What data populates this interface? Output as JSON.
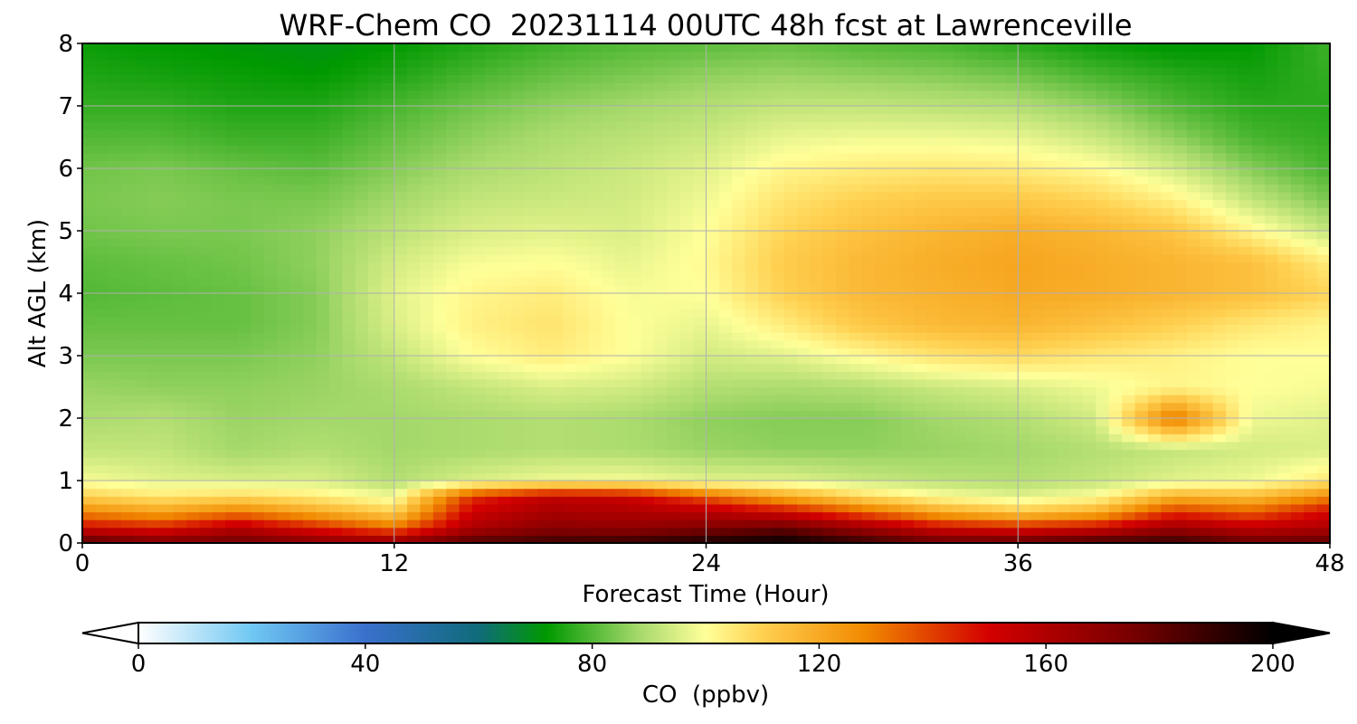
{
  "chart_data": {
    "type": "heatmap",
    "title": "WRF-Chem CO  20231114 00UTC 48h fcst at Lawrenceville",
    "xlabel": "Forecast Time (Hour)",
    "ylabel": "Alt AGL (km)",
    "xlim": [
      0,
      48
    ],
    "ylim": [
      0,
      8
    ],
    "x_ticks": [
      0,
      12,
      24,
      36,
      48
    ],
    "y_ticks": [
      0,
      1,
      2,
      3,
      4,
      5,
      6,
      7,
      8
    ],
    "grid": true,
    "x": [
      0,
      3,
      6,
      9,
      12,
      15,
      18,
      21,
      24,
      27,
      30,
      33,
      36,
      39,
      42,
      45,
      48
    ],
    "y": [
      0,
      0.25,
      0.5,
      0.75,
      1,
      1.5,
      2,
      2.5,
      3,
      3.5,
      4,
      4.5,
      5,
      5.5,
      6,
      6.5,
      7,
      7.5,
      8
    ],
    "z": [
      [
        185,
        175,
        178,
        172,
        170,
        185,
        188,
        190,
        196,
        200,
        190,
        180,
        182,
        188,
        190,
        180,
        182
      ],
      [
        150,
        145,
        158,
        145,
        132,
        160,
        170,
        168,
        172,
        178,
        165,
        150,
        145,
        150,
        165,
        155,
        160
      ],
      [
        128,
        122,
        130,
        120,
        110,
        152,
        162,
        160,
        158,
        150,
        135,
        120,
        112,
        118,
        142,
        135,
        150
      ],
      [
        110,
        105,
        108,
        104,
        98,
        142,
        155,
        152,
        135,
        120,
        108,
        100,
        96,
        100,
        118,
        115,
        128
      ],
      [
        99,
        96,
        95,
        95,
        90,
        95,
        98,
        99,
        96,
        96,
        93,
        91,
        90,
        92,
        96,
        98,
        105
      ],
      [
        92,
        92,
        88,
        90,
        88,
        89,
        90,
        89,
        87,
        86,
        86,
        87,
        88,
        90,
        92,
        94,
        95
      ],
      [
        89,
        90,
        87,
        88,
        88,
        89,
        90,
        89,
        86,
        85,
        85,
        88,
        90,
        94,
        132,
        98,
        96
      ],
      [
        87,
        86,
        86,
        87,
        89,
        92,
        95,
        94,
        90,
        89,
        90,
        93,
        95,
        98,
        102,
        100,
        99
      ],
      [
        84,
        84,
        84,
        86,
        92,
        100,
        104,
        100,
        94,
        96,
        101,
        106,
        108,
        105,
        103,
        100,
        100
      ],
      [
        82,
        82,
        82,
        85,
        95,
        103,
        106,
        100,
        97,
        104,
        112,
        116,
        117,
        114,
        110,
        105,
        102
      ],
      [
        80,
        81,
        82,
        85,
        96,
        102,
        104,
        99,
        100,
        110,
        116,
        118,
        120,
        119,
        117,
        114,
        109
      ],
      [
        81,
        82,
        83,
        86,
        94,
        99,
        100,
        97,
        101,
        111,
        116,
        119,
        121,
        119,
        117,
        114,
        104
      ],
      [
        83,
        84,
        84,
        86,
        91,
        95,
        96,
        95,
        100,
        109,
        114,
        117,
        119,
        117,
        113,
        102,
        92
      ],
      [
        84,
        85,
        84,
        84,
        88,
        92,
        93,
        94,
        98,
        106,
        110,
        112,
        112,
        109,
        103,
        92,
        84
      ],
      [
        83,
        84,
        82,
        81,
        85,
        89,
        91,
        93,
        96,
        102,
        104,
        105,
        104,
        101,
        94,
        85,
        79
      ],
      [
        80,
        80,
        78,
        78,
        82,
        86,
        89,
        91,
        93,
        97,
        98,
        98,
        97,
        93,
        86,
        79,
        77
      ],
      [
        77,
        77,
        75,
        75,
        79,
        83,
        86,
        88,
        90,
        92,
        92,
        91,
        90,
        86,
        80,
        76,
        76
      ],
      [
        75,
        74,
        73,
        72,
        75,
        79,
        82,
        84,
        86,
        87,
        86,
        85,
        83,
        79,
        76,
        74,
        77
      ],
      [
        73,
        72,
        71,
        70,
        72,
        75,
        78,
        80,
        81,
        82,
        80,
        79,
        76,
        73,
        71,
        72,
        78
      ]
    ],
    "colorbar": {
      "label": "CO  (ppbv)",
      "vmin": 0,
      "vmax": 200,
      "ticks": [
        0,
        40,
        80,
        120,
        160,
        200
      ],
      "extend": "both",
      "colors": [
        {
          "v": 0,
          "c": "#ffffff"
        },
        {
          "v": 10,
          "c": "#b9e3f8"
        },
        {
          "v": 20,
          "c": "#6fc8f3"
        },
        {
          "v": 40,
          "c": "#3a70cd"
        },
        {
          "v": 60,
          "c": "#0f6b7a"
        },
        {
          "v": 72,
          "c": "#009900"
        },
        {
          "v": 88,
          "c": "#a4d86a"
        },
        {
          "v": 100,
          "c": "#ffff99"
        },
        {
          "v": 110,
          "c": "#ffd050"
        },
        {
          "v": 128,
          "c": "#f18a00"
        },
        {
          "v": 150,
          "c": "#d30000"
        },
        {
          "v": 175,
          "c": "#780000"
        },
        {
          "v": 200,
          "c": "#000000"
        }
      ]
    }
  }
}
